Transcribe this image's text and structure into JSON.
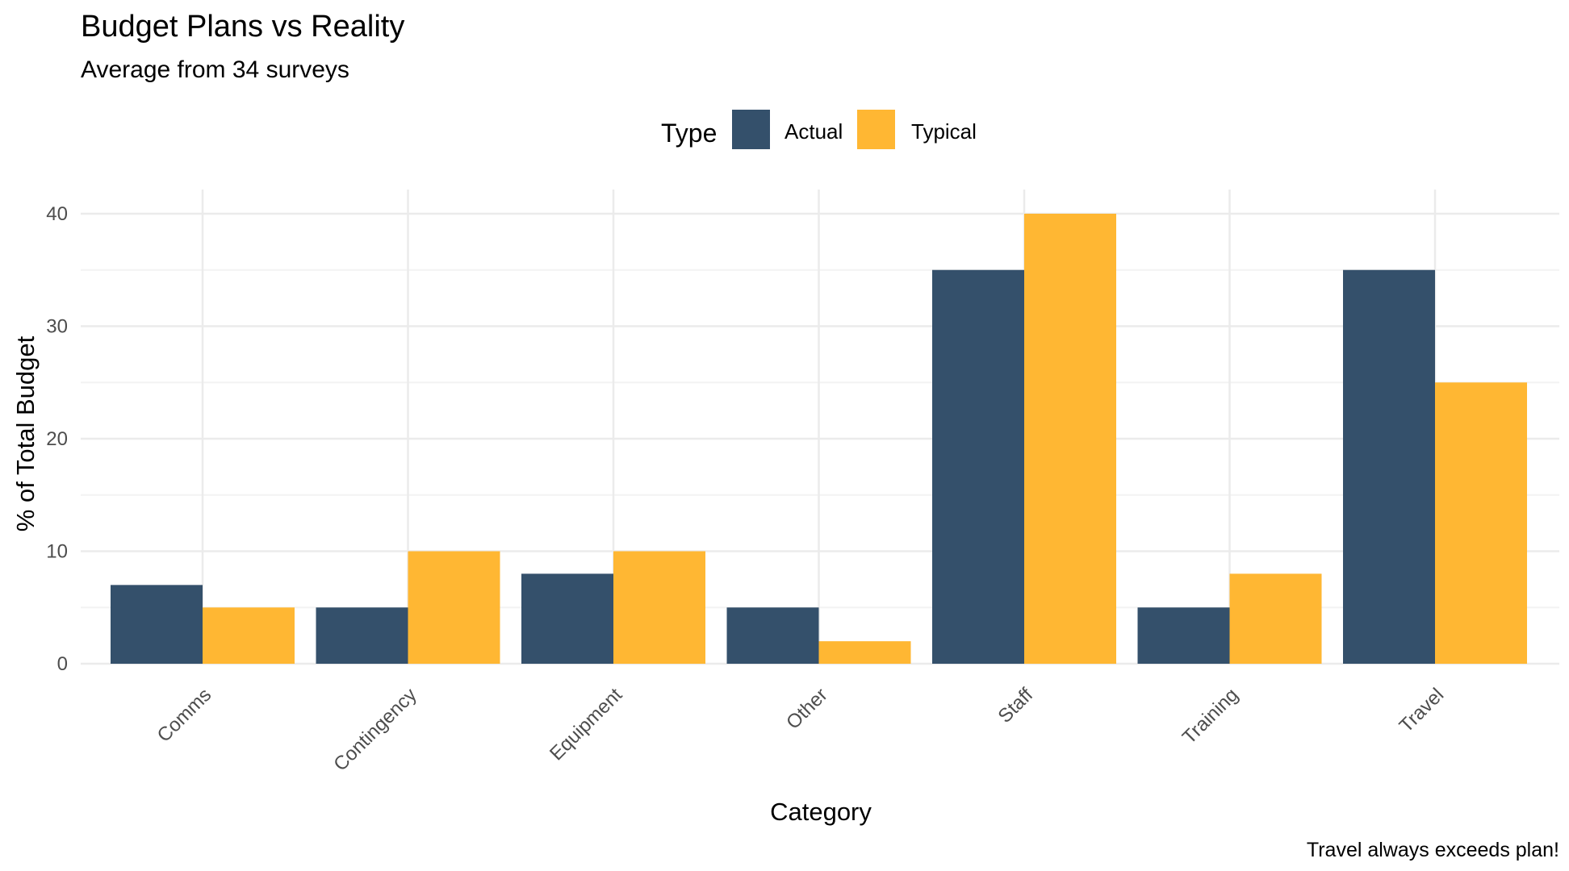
{
  "chart_data": {
    "type": "bar",
    "title": "Budget Plans vs Reality",
    "subtitle": "Average from 34 surveys",
    "xlabel": "Category",
    "ylabel": "% of Total Budget",
    "caption": "Travel always exceeds plan!",
    "categories": [
      "Comms",
      "Contingency",
      "Equipment",
      "Other",
      "Staff",
      "Training",
      "Travel"
    ],
    "series": [
      {
        "name": "Actual",
        "color": "#34506b",
        "values": [
          7,
          5,
          8,
          5,
          35,
          5,
          35
        ]
      },
      {
        "name": "Typical",
        "color": "#ffb733",
        "values": [
          5,
          10,
          10,
          2,
          40,
          8,
          25
        ]
      }
    ],
    "ylim": [
      0,
      42
    ],
    "yticks": [
      0,
      10,
      20,
      30,
      40
    ],
    "grid": true,
    "legend": {
      "title": "Type",
      "position": "top"
    }
  }
}
